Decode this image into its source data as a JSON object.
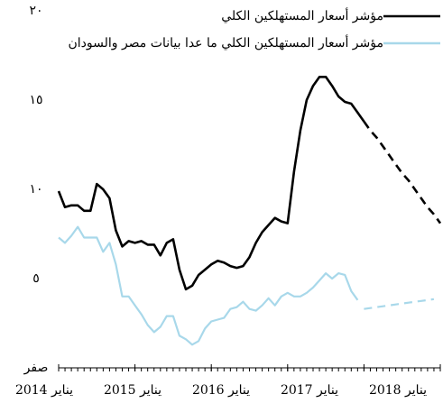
{
  "chart_data": {
    "type": "line",
    "x": [
      "2014-01",
      "2014-02",
      "2014-03",
      "2014-04",
      "2014-05",
      "2014-06",
      "2014-07",
      "2014-08",
      "2014-09",
      "2014-10",
      "2014-11",
      "2014-12",
      "2015-01",
      "2015-02",
      "2015-03",
      "2015-04",
      "2015-05",
      "2015-06",
      "2015-07",
      "2015-08",
      "2015-09",
      "2015-10",
      "2015-11",
      "2015-12",
      "2016-01",
      "2016-02",
      "2016-03",
      "2016-04",
      "2016-05",
      "2016-06",
      "2016-07",
      "2016-08",
      "2016-09",
      "2016-10",
      "2016-11",
      "2016-12",
      "2017-01",
      "2017-02",
      "2017-03",
      "2017-04",
      "2017-05",
      "2017-06",
      "2017-07",
      "2017-08",
      "2017-09",
      "2017-10",
      "2017-11",
      "2017-12",
      "2018-01",
      "2018-02",
      "2018-03",
      "2018-04",
      "2018-05",
      "2018-06",
      "2018-07",
      "2018-08",
      "2018-09",
      "2018-10",
      "2018-11",
      "2018-12",
      "2019-01"
    ],
    "series": [
      {
        "name": "مؤشر أسعار المستهلكين الكلي",
        "color": "#000000",
        "values": [
          9.9,
          9.0,
          9.1,
          9.1,
          8.8,
          8.8,
          10.3,
          10.0,
          9.5,
          7.7,
          6.8,
          7.1,
          7.0,
          7.1,
          6.9,
          6.9,
          6.3,
          7.0,
          7.2,
          5.5,
          4.4,
          4.6,
          5.2,
          5.5,
          5.8,
          6.0,
          5.9,
          5.7,
          5.6,
          5.7,
          6.2,
          7.0,
          7.6,
          8.0,
          8.4,
          8.2,
          8.1,
          11.0,
          13.3,
          15.0,
          15.8,
          16.3,
          16.3,
          15.8,
          15.2,
          14.9,
          14.8,
          14.3,
          13.8,
          null,
          null,
          null,
          null,
          null,
          null,
          null,
          null,
          null,
          null,
          null,
          null
        ],
        "forecast": [
          null,
          null,
          null,
          null,
          null,
          null,
          null,
          null,
          null,
          null,
          null,
          null,
          null,
          null,
          null,
          null,
          null,
          null,
          null,
          null,
          null,
          null,
          null,
          null,
          null,
          null,
          null,
          null,
          null,
          null,
          null,
          null,
          null,
          null,
          null,
          null,
          null,
          null,
          null,
          null,
          null,
          null,
          null,
          null,
          null,
          null,
          null,
          null,
          13.8,
          13.3,
          12.9,
          12.4,
          11.9,
          11.4,
          10.9,
          10.5,
          10.0,
          9.5,
          9.0,
          8.6,
          8.1
        ]
      },
      {
        "name": "مؤشر أسعار المستهلكين الكلي ما عدا بيانات مصر والسودان",
        "color": "#a8d8ea",
        "values": [
          7.3,
          7.0,
          7.4,
          7.9,
          7.3,
          7.3,
          7.3,
          6.5,
          7.0,
          5.8,
          4.0,
          4.0,
          3.5,
          3.0,
          2.4,
          2.0,
          2.3,
          2.9,
          2.9,
          1.8,
          1.6,
          1.3,
          1.5,
          2.2,
          2.6,
          2.7,
          2.8,
          3.3,
          3.4,
          3.7,
          3.3,
          3.2,
          3.5,
          3.9,
          3.5,
          4.0,
          4.2,
          4.0,
          4.0,
          4.2,
          4.5,
          4.9,
          5.3,
          5.0,
          5.3,
          5.2,
          4.3,
          3.8,
          null,
          null,
          null,
          null,
          null,
          null,
          null,
          null,
          null,
          null,
          null,
          null,
          null
        ],
        "forecast": [
          null,
          null,
          null,
          null,
          null,
          null,
          null,
          null,
          null,
          null,
          null,
          null,
          null,
          null,
          null,
          null,
          null,
          null,
          null,
          null,
          null,
          null,
          null,
          null,
          null,
          null,
          null,
          null,
          null,
          null,
          null,
          null,
          null,
          null,
          null,
          null,
          null,
          null,
          null,
          null,
          null,
          null,
          null,
          null,
          null,
          null,
          null,
          null,
          3.3,
          3.35,
          3.4,
          3.45,
          3.5,
          3.55,
          3.6,
          3.65,
          3.7,
          3.75,
          3.8,
          3.85,
          null
        ]
      }
    ],
    "xticks": [
      {
        "value": "2014-01",
        "label": "يناير 2014"
      },
      {
        "value": "2015-01",
        "label": "يناير 2015"
      },
      {
        "value": "2016-01",
        "label": "يناير 2016"
      },
      {
        "value": "2017-01",
        "label": "يناير 2017"
      },
      {
        "value": "2018-01",
        "label": "يناير 2018"
      }
    ],
    "xlim": [
      "2014-01",
      "2019-01"
    ],
    "ylim": [
      0,
      20
    ],
    "yticks": [
      {
        "value": 0,
        "label": "صفر"
      },
      {
        "value": 5,
        "label": "٥"
      },
      {
        "value": 10,
        "label": "١٠"
      },
      {
        "value": 15,
        "label": "١٥"
      },
      {
        "value": 20,
        "label": "٢٠"
      }
    ],
    "grid": false
  }
}
